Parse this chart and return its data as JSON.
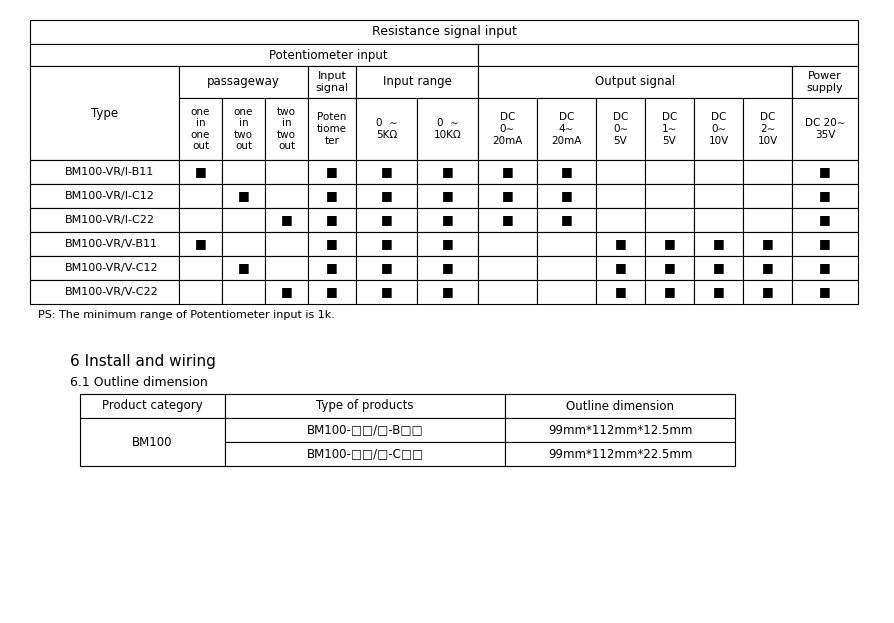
{
  "title": "Resistance signal input",
  "potentiometer_input": "Potentiometer input",
  "passageway": "passageway",
  "input_signal": "Input\nsignal",
  "input_range": "Input range",
  "output_signal": "Output signal",
  "power_supply": "Power\nsupply",
  "type_col": "Type",
  "passageway_cols": [
    "one\nin\none\nout",
    "one\nin\ntwo\nout",
    "two\nin\ntwo\nout"
  ],
  "input_signal_col": "Poten\ntiome\nter",
  "input_range_cols": [
    "0  ∼\n5KΩ",
    "0  ∼\n10KΩ"
  ],
  "output_signal_cols": [
    "DC\n0∼\n20mA",
    "DC\n4∼\n20mA",
    "DC\n0∼\n5V",
    "DC\n1∼\n5V",
    "DC\n0∼\n10V",
    "DC\n2∼\n10V"
  ],
  "power_supply_col": "DC 20∼\n35V",
  "rows": [
    {
      "name": "BM100-VR/I-B11",
      "cols": [
        1,
        0,
        0,
        1,
        1,
        1,
        1,
        1,
        0,
        0,
        0,
        0,
        1
      ]
    },
    {
      "name": "BM100-VR/I-C12",
      "cols": [
        0,
        1,
        0,
        1,
        1,
        1,
        1,
        1,
        0,
        0,
        0,
        0,
        1
      ]
    },
    {
      "name": "BM100-VR/I-C22",
      "cols": [
        0,
        0,
        1,
        1,
        1,
        1,
        1,
        1,
        0,
        0,
        0,
        0,
        1
      ]
    },
    {
      "name": "BM100-VR/V-B11",
      "cols": [
        1,
        0,
        0,
        1,
        1,
        1,
        0,
        0,
        1,
        1,
        1,
        1,
        1
      ]
    },
    {
      "name": "BM100-VR/V-C12",
      "cols": [
        0,
        1,
        0,
        1,
        1,
        1,
        0,
        0,
        1,
        1,
        1,
        1,
        1
      ]
    },
    {
      "name": "BM100-VR/V-C22",
      "cols": [
        0,
        0,
        1,
        1,
        1,
        1,
        0,
        0,
        1,
        1,
        1,
        1,
        1
      ]
    }
  ],
  "note": "PS: The minimum range of Potentiometer input is 1k.",
  "section_title": "6 Install and wiring",
  "section_sub": "6.1 Outline dimension",
  "bt_headers": [
    "Product category",
    "Type of products",
    "Outline dimension"
  ],
  "bt_rows": [
    [
      "BM100",
      "BM100-□□/□-B□□",
      "99mm*112mm*12.5mm"
    ],
    [
      "BM100",
      "BM100-□□/□-C□□",
      "99mm*112mm*22.5mm"
    ]
  ],
  "bg_color": "#ffffff",
  "line_color": "#000000"
}
